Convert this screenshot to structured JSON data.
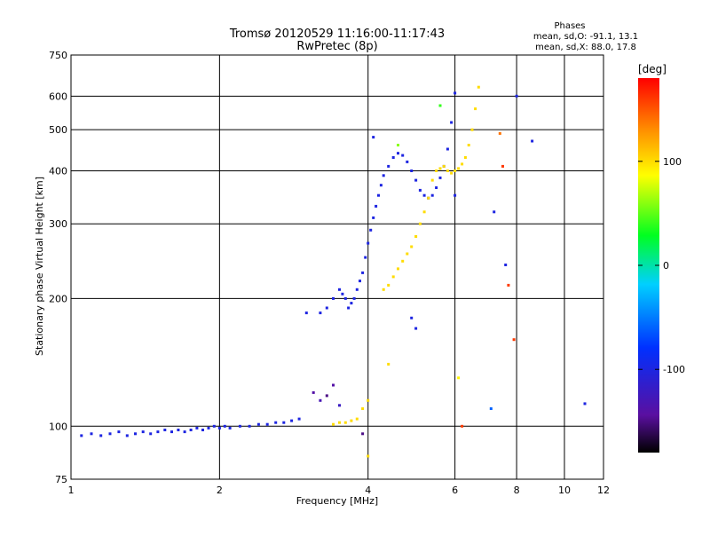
{
  "chart_data": {
    "type": "scatter",
    "title": "Tromsø 20120529 11:16:00-11:17:43",
    "subtitle": "RwPretec (8p)",
    "xlabel": "Frequency [MHz]",
    "ylabel": "Stationary phase Virtual Height [km]",
    "x_scale": "log",
    "y_scale": "log",
    "xlim": [
      1,
      12
    ],
    "ylim": [
      75,
      750
    ],
    "x_ticks": [
      1,
      2,
      4,
      6,
      8,
      10,
      12
    ],
    "y_ticks": [
      75,
      100,
      200,
      300,
      400,
      500,
      600,
      750
    ],
    "grid": true,
    "phases_box": {
      "heading": "Phases",
      "line1": "mean, sd,O: -91.1, 13.1",
      "line2": "mean, sd,X: 88.0, 17.8"
    },
    "colorbar": {
      "label": "[deg]",
      "range": [
        -180,
        180
      ],
      "ticks": [
        100,
        0,
        -100
      ]
    },
    "series": [
      {
        "mode": "O",
        "phase_deg": -100,
        "points": [
          [
            1.05,
            95
          ],
          [
            1.1,
            96
          ],
          [
            1.15,
            95
          ],
          [
            1.2,
            96
          ],
          [
            1.25,
            97
          ],
          [
            1.3,
            95
          ],
          [
            1.35,
            96
          ],
          [
            1.4,
            97
          ],
          [
            1.45,
            96
          ],
          [
            1.5,
            97
          ],
          [
            1.55,
            98
          ],
          [
            1.6,
            97
          ],
          [
            1.65,
            98
          ],
          [
            1.7,
            97
          ],
          [
            1.75,
            98
          ],
          [
            1.8,
            99
          ],
          [
            1.85,
            98
          ],
          [
            1.9,
            99
          ],
          [
            1.95,
            100
          ],
          [
            2.0,
            99
          ],
          [
            2.05,
            100
          ],
          [
            2.1,
            99
          ],
          [
            2.2,
            100
          ],
          [
            2.3,
            100
          ],
          [
            2.4,
            101
          ],
          [
            2.5,
            101
          ],
          [
            2.6,
            102
          ],
          [
            2.7,
            102
          ],
          [
            2.8,
            103
          ],
          [
            2.9,
            104
          ],
          [
            3.2,
            185
          ],
          [
            3.3,
            190
          ],
          [
            3.4,
            200
          ],
          [
            3.5,
            210
          ],
          [
            3.55,
            205
          ],
          [
            3.6,
            200
          ],
          [
            3.65,
            190
          ],
          [
            3.7,
            195
          ],
          [
            3.75,
            200
          ],
          [
            3.8,
            210
          ],
          [
            3.85,
            220
          ],
          [
            3.9,
            230
          ],
          [
            3.95,
            250
          ],
          [
            4.0,
            270
          ],
          [
            4.05,
            290
          ],
          [
            4.1,
            310
          ],
          [
            4.15,
            330
          ],
          [
            4.2,
            350
          ],
          [
            4.25,
            370
          ],
          [
            4.3,
            390
          ],
          [
            4.4,
            410
          ],
          [
            4.5,
            430
          ],
          [
            4.6,
            440
          ],
          [
            4.7,
            435
          ],
          [
            4.8,
            420
          ],
          [
            4.9,
            400
          ],
          [
            5.0,
            380
          ],
          [
            5.1,
            360
          ],
          [
            5.2,
            350
          ],
          [
            5.3,
            345
          ],
          [
            5.4,
            350
          ],
          [
            5.5,
            365
          ],
          [
            5.6,
            385
          ],
          [
            5.7,
            410
          ],
          [
            5.8,
            450
          ],
          [
            5.9,
            520
          ],
          [
            6.0,
            610
          ]
        ]
      },
      {
        "mode": "X",
        "phase_deg": 100,
        "points": [
          [
            3.4,
            101
          ],
          [
            3.5,
            102
          ],
          [
            3.6,
            102
          ],
          [
            3.7,
            103
          ],
          [
            3.8,
            104
          ],
          [
            3.9,
            110
          ],
          [
            4.0,
            115
          ],
          [
            4.3,
            210
          ],
          [
            4.4,
            215
          ],
          [
            4.5,
            225
          ],
          [
            4.6,
            235
          ],
          [
            4.7,
            245
          ],
          [
            4.8,
            255
          ],
          [
            4.9,
            265
          ],
          [
            5.0,
            280
          ],
          [
            5.1,
            300
          ],
          [
            5.2,
            320
          ],
          [
            5.3,
            345
          ],
          [
            5.4,
            380
          ],
          [
            5.5,
            400
          ],
          [
            5.6,
            405
          ],
          [
            5.7,
            410
          ],
          [
            5.8,
            400
          ],
          [
            5.9,
            395
          ],
          [
            6.0,
            400
          ],
          [
            6.1,
            405
          ],
          [
            6.2,
            415
          ],
          [
            6.3,
            430
          ],
          [
            6.4,
            460
          ],
          [
            6.5,
            500
          ],
          [
            6.6,
            560
          ],
          [
            6.7,
            630
          ]
        ]
      },
      {
        "mode": "scattered",
        "points": [
          [
            3.0,
            185,
            -100
          ],
          [
            3.1,
            120,
            -140
          ],
          [
            3.2,
            115,
            -130
          ],
          [
            3.3,
            118,
            -150
          ],
          [
            3.4,
            125,
            -140
          ],
          [
            3.5,
            112,
            -120
          ],
          [
            3.9,
            96,
            -150
          ],
          [
            4.1,
            480,
            -100
          ],
          [
            4.6,
            460,
            60
          ],
          [
            4.9,
            180,
            -100
          ],
          [
            5.0,
            170,
            -100
          ],
          [
            5.6,
            570,
            40
          ],
          [
            6.0,
            350,
            -100
          ],
          [
            6.1,
            130,
            90
          ],
          [
            6.2,
            100,
            160
          ],
          [
            7.1,
            110,
            -60
          ],
          [
            7.2,
            320,
            -100
          ],
          [
            7.4,
            490,
            140
          ],
          [
            7.5,
            410,
            160
          ],
          [
            7.6,
            240,
            -100
          ],
          [
            7.7,
            215,
            160
          ],
          [
            7.9,
            160,
            160
          ],
          [
            8.0,
            600,
            -100
          ],
          [
            8.6,
            470,
            -100
          ],
          [
            11.0,
            113,
            -100
          ],
          [
            4.0,
            85,
            100
          ],
          [
            4.4,
            140,
            100
          ]
        ]
      }
    ]
  }
}
